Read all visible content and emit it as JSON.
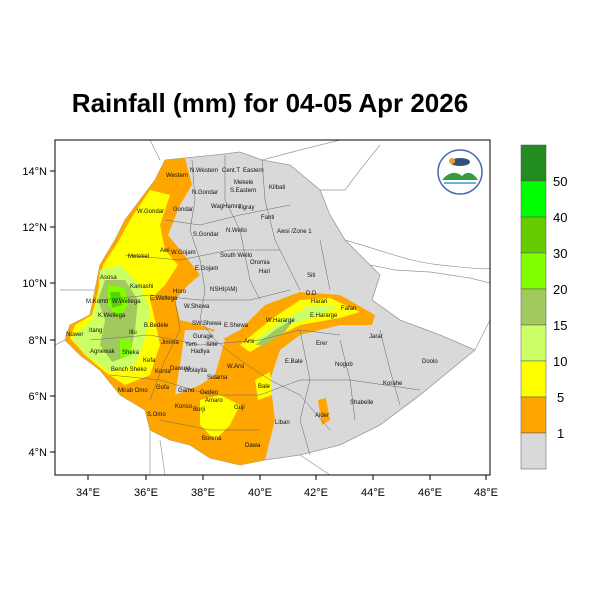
{
  "title": "Rainfall (mm) for 04-05 Apr 2026",
  "x_ticks": [
    "34°E",
    "36°E",
    "38°E",
    "40°E",
    "42°E",
    "44°E",
    "46°E",
    "48°E"
  ],
  "y_ticks": [
    "14°N",
    "12°N",
    "10°N",
    "8°N",
    "6°N",
    "4°N"
  ],
  "colorbar": {
    "labels": [
      "50",
      "40",
      "30",
      "20",
      "15",
      "10",
      "5",
      "1"
    ],
    "colors": [
      "#228b22",
      "#00ff00",
      "#66cc00",
      "#80ff00",
      "#a2c95e",
      "#ccff66",
      "#ffff00",
      "#ffa500",
      "#d9d9d9"
    ]
  },
  "logo_text": "Ethiopian Meteorology Institute",
  "map": {
    "zones": [
      "N.Western",
      "Cent.T",
      "Eastern",
      "Western",
      "Mekele",
      "S.Eastern",
      "Kilbati",
      "N.Gondar",
      "Gondar",
      "W.Gondar",
      "WagHamra",
      "Tigray",
      "Fanti",
      "S.Gondar",
      "N.Wello",
      "Awsi /Zone 1",
      "Metekel",
      "Awi",
      "W.Gojam",
      "South Wello",
      "Oromia",
      "Hari",
      "E.Gojam",
      "Siti",
      "Asosa",
      "Kamashi",
      "D.D",
      "Harari",
      "Fafan",
      "M.Komo",
      "W.Wellega",
      "Horo",
      "NSHI(AM)",
      "E.Wellega",
      "W.Shewa",
      "K.Wellega",
      "W.Hararge",
      "E.Hararge",
      "B.Bedele",
      "SW.Shewa",
      "E.Shewa",
      "Nuwer",
      "Itang",
      "Illu",
      "Gurage",
      "Arsi",
      "Jarar",
      "Jimma",
      "Yem",
      "Silte",
      "Agnewak",
      "Sheka",
      "Hadiya",
      "Kefa",
      "W.Arsi",
      "Erer",
      "Bench Sheko",
      "Konta",
      "Dawuro",
      "Wolayita",
      "Sidama",
      "E.Bale",
      "Nogob",
      "Doolo",
      "Bale",
      "Gofa",
      "Gamo",
      "Gedeo",
      "Mirab Omo",
      "Guji",
      "Korahe",
      "Amaro",
      "S.Omo",
      "Liban",
      "Shabelle",
      "Alder",
      "Borena",
      "Dawa",
      "Konso",
      "Burji"
    ]
  }
}
